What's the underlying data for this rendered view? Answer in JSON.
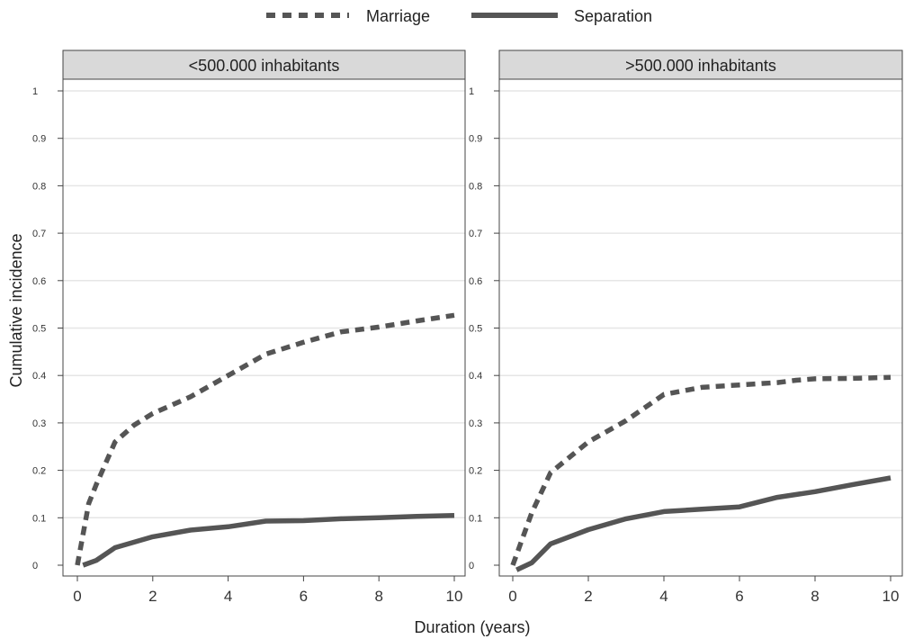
{
  "legend": {
    "marriage": "Marriage",
    "separation": "Separation"
  },
  "axes": {
    "ylabel": "Cumulative incidence",
    "xlabel": "Duration (years)"
  },
  "colors": {
    "line": "#555555",
    "grid": "#e6e6e6",
    "strip": "#d9d9d9",
    "frame": "#444444"
  },
  "chart_data": [
    {
      "type": "line",
      "title": "<500.000 inhabitants",
      "xlabel": "Duration (years)",
      "ylabel": "Cumulative incidence",
      "xlim": [
        0,
        10
      ],
      "ylim": [
        0,
        1
      ],
      "xticks": [
        "0",
        "2",
        "4",
        "6",
        "8",
        "10"
      ],
      "yticks": [
        "0",
        "0.1",
        "0.2",
        "0.3",
        "0.4",
        "0.5",
        "0.6",
        "0.7",
        "0.8",
        "0.9",
        "1"
      ],
      "grid": true,
      "series": [
        {
          "name": "Marriage",
          "style": "dashed",
          "x": [
            0,
            0.3,
            0.5,
            1,
            1.5,
            2,
            3,
            4,
            5,
            6,
            7,
            8,
            9,
            10
          ],
          "y": [
            0,
            0.13,
            0.17,
            0.26,
            0.295,
            0.32,
            0.355,
            0.4,
            0.445,
            0.47,
            0.492,
            0.502,
            0.515,
            0.527
          ]
        },
        {
          "name": "Separation",
          "style": "solid",
          "x": [
            0.15,
            0.5,
            1,
            2,
            3,
            4,
            5,
            6,
            7,
            8,
            9,
            10
          ],
          "y": [
            0,
            0.01,
            0.037,
            0.06,
            0.074,
            0.081,
            0.093,
            0.094,
            0.098,
            0.1,
            0.103,
            0.105
          ]
        }
      ]
    },
    {
      "type": "line",
      "title": ">500.000  inhabitants",
      "xlabel": "Duration (years)",
      "ylabel": "",
      "xlim": [
        0,
        10
      ],
      "ylim": [
        0,
        1
      ],
      "xticks": [
        "0",
        "2",
        "4",
        "6",
        "8",
        "10"
      ],
      "yticks": [
        "0",
        "0.1",
        "0.2",
        "0.3",
        "0.4",
        "0.5",
        "0.6",
        "0.7",
        "0.8",
        "0.9",
        "1"
      ],
      "grid": true,
      "series": [
        {
          "name": "Marriage",
          "style": "dashed",
          "x": [
            0,
            0.5,
            1,
            2,
            3,
            4,
            5,
            6,
            7,
            7.5,
            8,
            9,
            10
          ],
          "y": [
            0,
            0.11,
            0.195,
            0.26,
            0.305,
            0.36,
            0.375,
            0.38,
            0.385,
            0.39,
            0.393,
            0.394,
            0.396
          ]
        },
        {
          "name": "Separation",
          "style": "solid",
          "x": [
            0.1,
            0.5,
            1,
            2,
            3,
            4,
            5,
            6,
            7,
            8,
            9,
            10
          ],
          "y": [
            -0.01,
            0.005,
            0.045,
            0.075,
            0.098,
            0.113,
            0.118,
            0.123,
            0.143,
            0.155,
            0.17,
            0.184
          ]
        }
      ]
    }
  ]
}
